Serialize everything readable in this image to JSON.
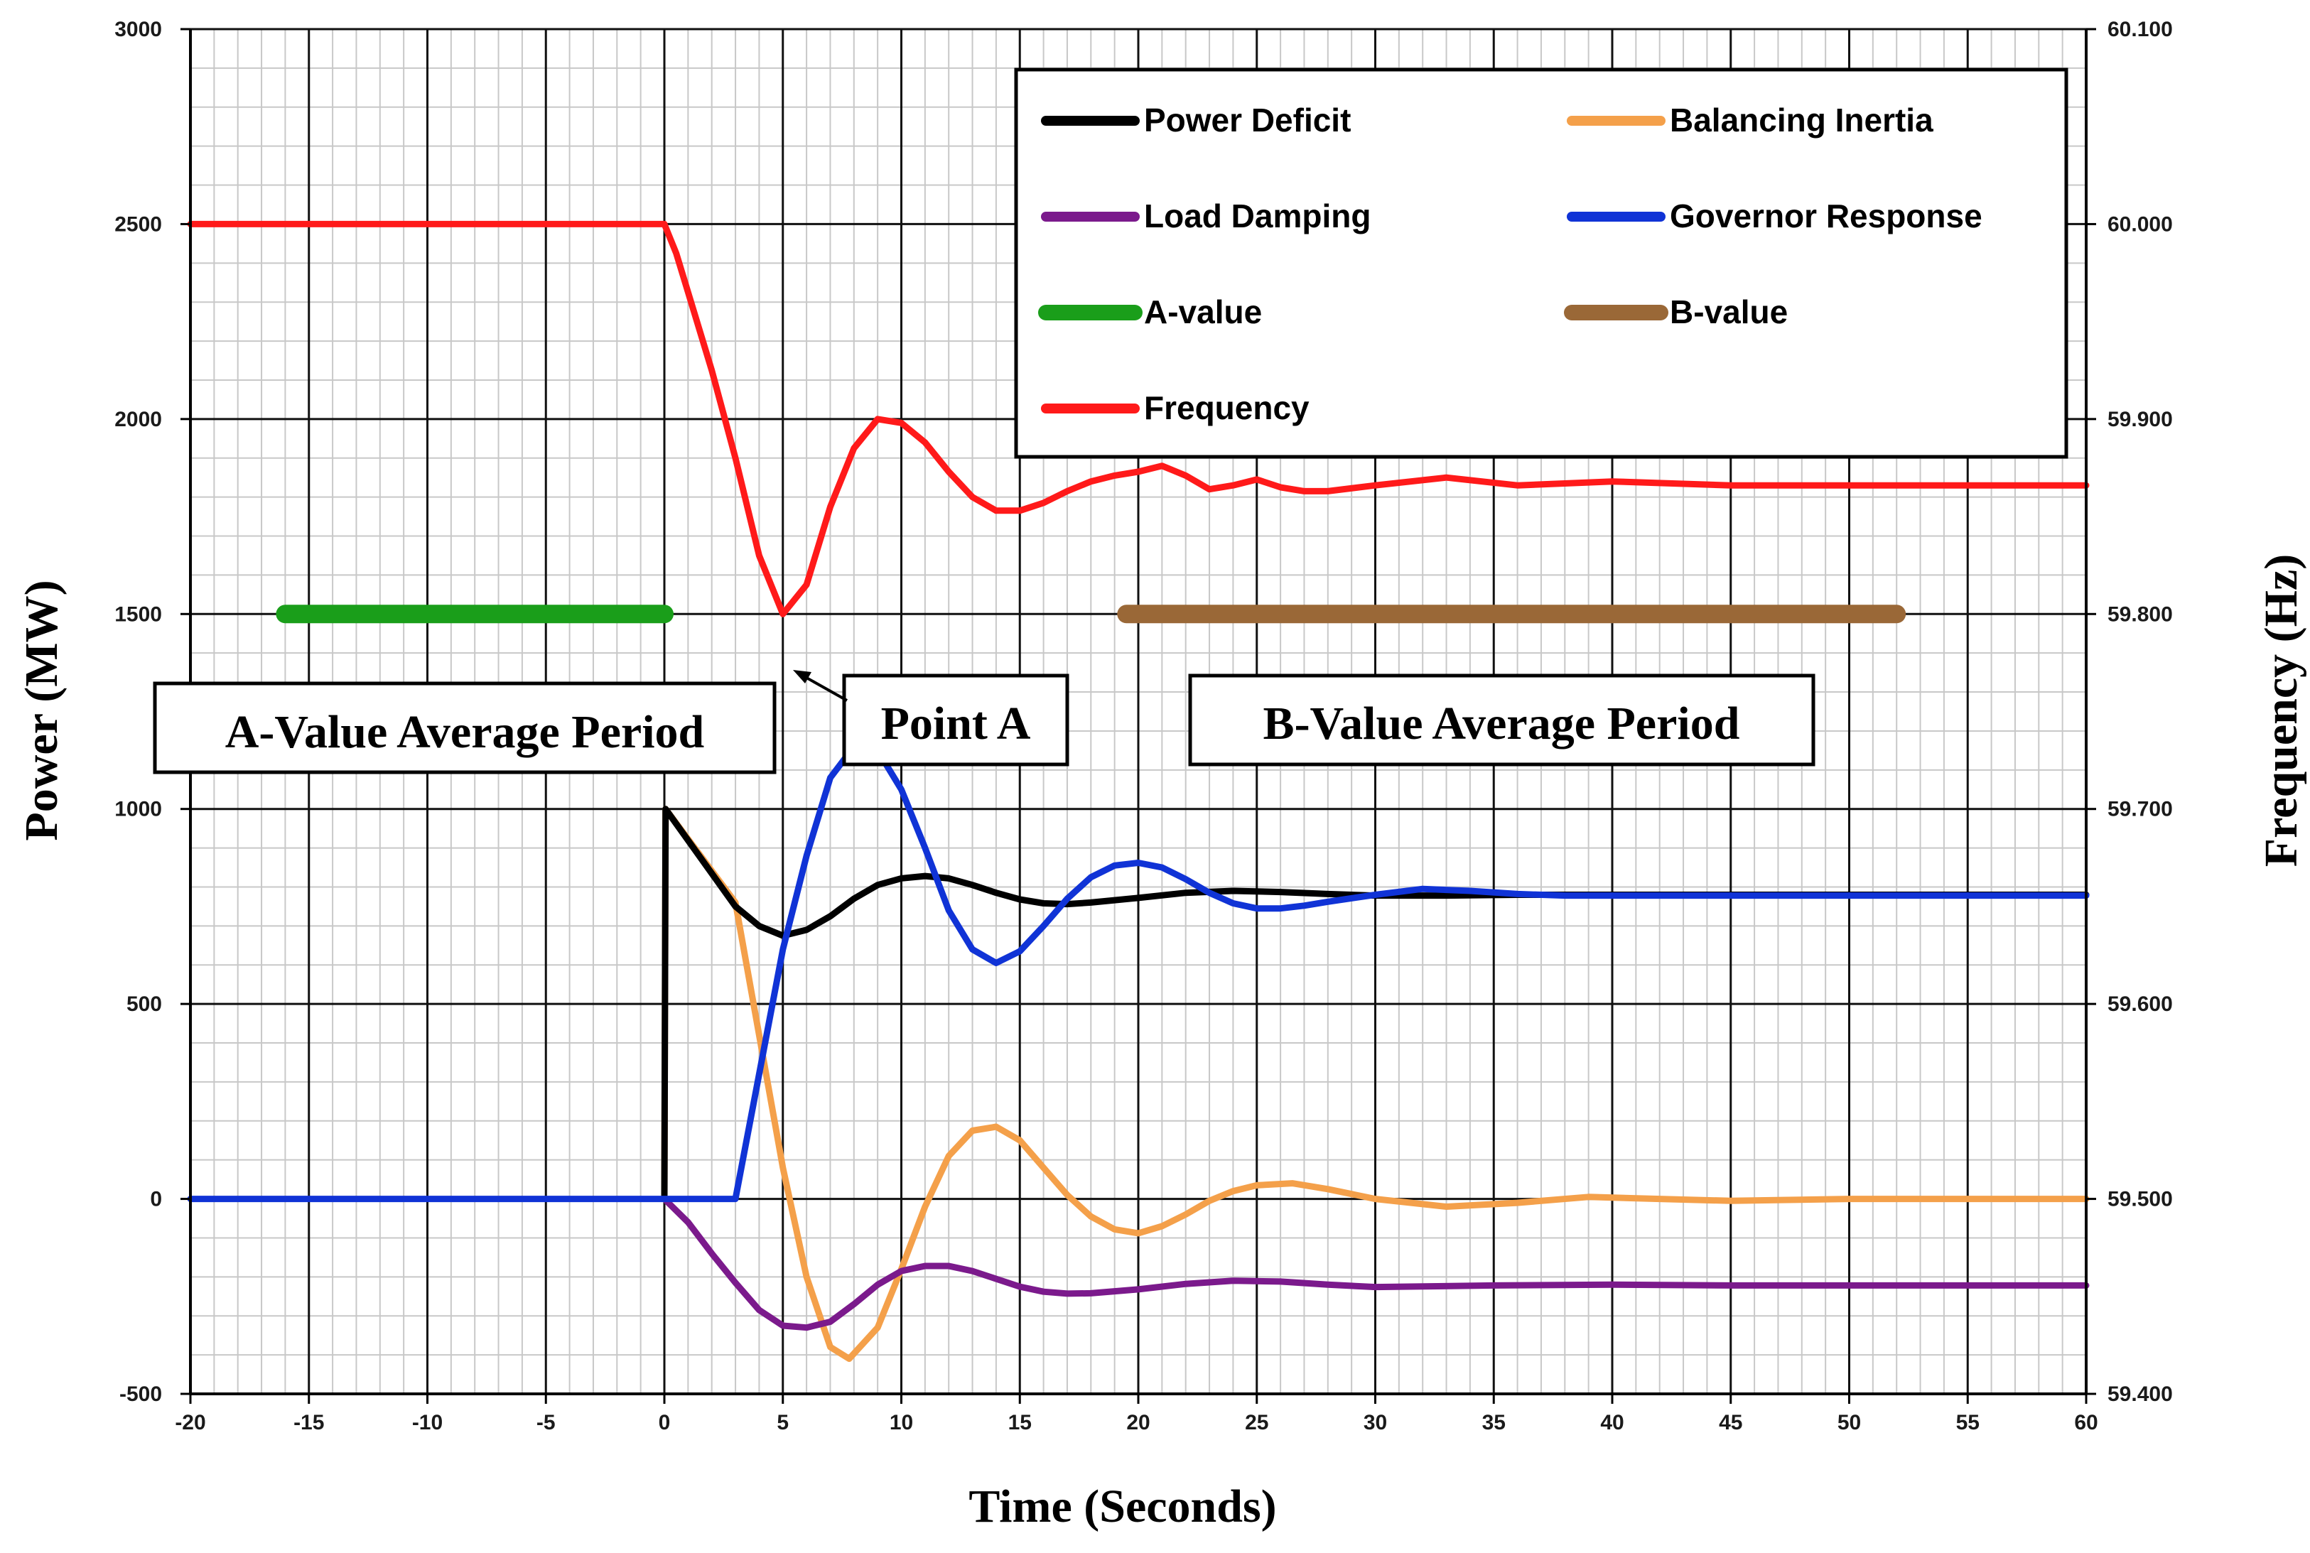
{
  "chart_data": {
    "type": "line",
    "xlabel": "Time (Seconds)",
    "ylabel": "Power (MW)",
    "y2label": "Frequency (Hz)",
    "xlim": [
      -20,
      60
    ],
    "ylim": [
      -500,
      3000
    ],
    "y2lim": [
      59.4,
      60.1
    ],
    "x_ticks": [
      "-20",
      "-15",
      "-10",
      "-5",
      "0",
      "5",
      "10",
      "15",
      "20",
      "25",
      "30",
      "35",
      "40",
      "45",
      "50",
      "55",
      "60"
    ],
    "y_ticks": [
      "-500",
      "0",
      "500",
      "1000",
      "1500",
      "2000",
      "2500",
      "3000"
    ],
    "y2_ticks": [
      "59.400",
      "59.500",
      "59.600",
      "59.700",
      "59.800",
      "59.900",
      "60.000",
      "60.100"
    ],
    "legend_position": "top-right",
    "colors": {
      "power_deficit": "#000000",
      "balancing_inertia": "#f4a04a",
      "load_damping": "#7b1a8c",
      "governor_response": "#1033d6",
      "a_value": "#1a9e1a",
      "b_value": "#9a6837",
      "frequency": "#ff1a1a"
    },
    "series": [
      {
        "key": "power_deficit",
        "name": "Power Deficit",
        "axis": "left",
        "x": [
          0,
          0.05,
          3,
          4,
          5,
          6,
          7,
          8,
          9,
          10,
          11,
          12,
          13,
          14,
          15,
          16,
          17,
          18,
          19,
          20,
          22,
          24,
          26,
          28,
          30,
          33,
          36,
          40,
          45,
          50,
          55,
          60
        ],
        "y": [
          0,
          1000,
          750,
          700,
          675,
          690,
          725,
          770,
          805,
          822,
          828,
          822,
          805,
          785,
          768,
          758,
          756,
          760,
          766,
          772,
          785,
          790,
          787,
          782,
          778,
          778,
          780,
          780,
          780,
          780,
          780,
          780
        ]
      },
      {
        "key": "balancing_inertia",
        "name": "Balancing Inertia",
        "axis": "left",
        "x": [
          0,
          0.05,
          3,
          4,
          5,
          6,
          7,
          7.8,
          9,
          10,
          11,
          12,
          13,
          14,
          15,
          16,
          17,
          18,
          19,
          20,
          21,
          22,
          23,
          24,
          25,
          26.5,
          28,
          30,
          33,
          36,
          39,
          42,
          45,
          50,
          55,
          60
        ],
        "y": [
          0,
          1000,
          760,
          420,
          80,
          -200,
          -380,
          -410,
          -330,
          -180,
          -20,
          110,
          175,
          185,
          150,
          80,
          10,
          -45,
          -78,
          -88,
          -70,
          -40,
          -5,
          20,
          35,
          40,
          25,
          0,
          -20,
          -10,
          5,
          0,
          -5,
          0,
          0,
          0
        ]
      },
      {
        "key": "load_damping",
        "name": "Load Damping",
        "axis": "left",
        "x": [
          0,
          1,
          2,
          3,
          4,
          5,
          6,
          7,
          8,
          9,
          10,
          11,
          12,
          13,
          14,
          15,
          16,
          17,
          18,
          20,
          22,
          24,
          26,
          28,
          30,
          35,
          40,
          45,
          50,
          55,
          60
        ],
        "y": [
          0,
          -60,
          -140,
          -215,
          -285,
          -325,
          -330,
          -315,
          -270,
          -220,
          -185,
          -172,
          -172,
          -185,
          -205,
          -225,
          -238,
          -243,
          -242,
          -232,
          -218,
          -210,
          -212,
          -220,
          -226,
          -222,
          -220,
          -222,
          -222,
          -222,
          -222
        ]
      },
      {
        "key": "governor_response",
        "name": "Governor Response",
        "axis": "left",
        "x": [
          -20,
          2.5,
          3,
          4,
          5,
          6,
          7,
          8,
          9,
          10,
          11,
          12,
          13,
          14,
          15,
          16,
          17,
          18,
          19,
          20,
          21,
          22,
          23,
          24,
          25,
          26,
          27,
          28,
          30,
          32,
          34,
          36,
          38,
          40,
          45,
          50,
          55,
          60
        ],
        "y": [
          0,
          0,
          0,
          320,
          640,
          880,
          1080,
          1160,
          1150,
          1050,
          900,
          740,
          640,
          605,
          635,
          700,
          770,
          825,
          855,
          862,
          850,
          820,
          785,
          758,
          745,
          745,
          752,
          762,
          780,
          795,
          790,
          782,
          778,
          778,
          778,
          778,
          778,
          778
        ]
      },
      {
        "key": "a_value",
        "name": "A-value",
        "axis": "left",
        "x": [
          -16,
          0
        ],
        "y": [
          1500,
          1500
        ]
      },
      {
        "key": "b_value",
        "name": "B-value",
        "axis": "left",
        "x": [
          19.5,
          52
        ],
        "y": [
          1500,
          1500
        ]
      },
      {
        "key": "frequency",
        "name": "Frequency",
        "axis": "right",
        "x": [
          -20,
          0,
          0.5,
          1,
          2,
          3,
          4,
          5,
          6,
          7,
          8,
          9,
          10,
          11,
          12,
          13,
          14,
          15,
          16,
          17,
          18,
          19,
          20,
          21,
          22,
          23,
          24,
          25,
          26,
          27,
          28,
          30,
          33,
          36,
          40,
          45,
          50,
          55,
          60
        ],
        "y": [
          60.0,
          60.0,
          59.985,
          59.965,
          59.925,
          59.88,
          59.83,
          59.8,
          59.815,
          59.855,
          59.885,
          59.9,
          59.898,
          59.888,
          59.873,
          59.86,
          59.853,
          59.853,
          59.857,
          59.863,
          59.868,
          59.871,
          59.873,
          59.876,
          59.871,
          59.864,
          59.866,
          59.869,
          59.865,
          59.863,
          59.863,
          59.866,
          59.87,
          59.866,
          59.868,
          59.866,
          59.866,
          59.866,
          59.866
        ]
      }
    ],
    "annotations": {
      "a_period": "A-Value Average Period",
      "point_a": "Point A",
      "b_period": "B-Value Average Period"
    }
  }
}
